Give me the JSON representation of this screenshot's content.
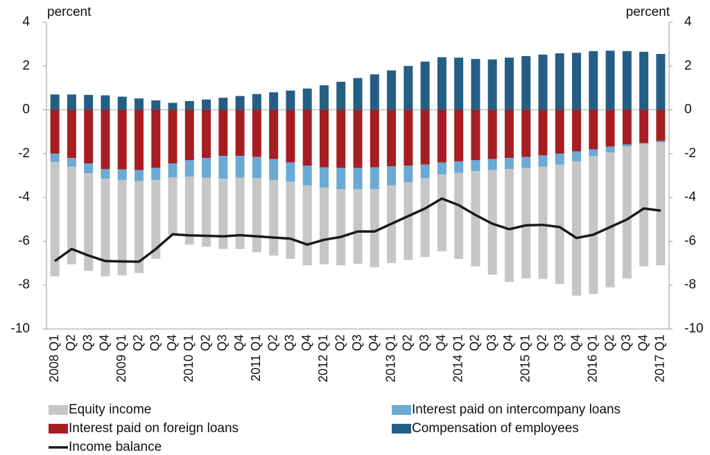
{
  "chart_data": {
    "type": "bar",
    "stacked": true,
    "y_label": "percent",
    "y2_label": "percent",
    "categories": [
      "2008 Q1",
      "Q2",
      "Q3",
      "Q4",
      "2009 Q1",
      "Q2",
      "Q3",
      "Q4",
      "2010 Q1",
      "Q2",
      "Q3",
      "Q4",
      "2011 Q1",
      "Q2",
      "Q3",
      "Q4",
      "2012 Q1",
      "Q2",
      "Q3",
      "Q4",
      "2013 Q1",
      "Q2",
      "Q3",
      "Q4",
      "2014 Q1",
      "Q2",
      "Q3",
      "Q4",
      "2015 Q1",
      "Q2",
      "Q3",
      "Q4",
      "2016 Q1",
      "Q2",
      "Q3",
      "Q4",
      "2017 Q1"
    ],
    "series": [
      {
        "name": "Compensation of employees",
        "color": "#255e85",
        "type": "bar",
        "values": [
          0.7,
          0.7,
          0.68,
          0.66,
          0.6,
          0.52,
          0.43,
          0.32,
          0.4,
          0.47,
          0.55,
          0.63,
          0.72,
          0.8,
          0.88,
          0.97,
          1.12,
          1.28,
          1.45,
          1.62,
          1.8,
          2.0,
          2.2,
          2.4,
          2.38,
          2.32,
          2.3,
          2.38,
          2.45,
          2.52,
          2.58,
          2.6,
          2.68,
          2.7,
          2.68,
          2.65,
          2.55
        ]
      },
      {
        "name": "Interest paid on foreign loans",
        "color": "#a71e22",
        "type": "bar",
        "values": [
          -2.0,
          -2.2,
          -2.45,
          -2.7,
          -2.72,
          -2.75,
          -2.65,
          -2.45,
          -2.3,
          -2.2,
          -2.1,
          -2.1,
          -2.15,
          -2.25,
          -2.4,
          -2.55,
          -2.62,
          -2.65,
          -2.65,
          -2.62,
          -2.58,
          -2.55,
          -2.5,
          -2.4,
          -2.35,
          -2.3,
          -2.25,
          -2.2,
          -2.15,
          -2.08,
          -2.0,
          -1.9,
          -1.8,
          -1.68,
          -1.58,
          -1.52,
          -1.42
        ]
      },
      {
        "name": "Interest paid on intercompany loans",
        "color": "#6aaad5",
        "type": "bar",
        "values": [
          -0.38,
          -0.4,
          -0.45,
          -0.45,
          -0.48,
          -0.5,
          -0.55,
          -0.63,
          -0.75,
          -0.9,
          -1.05,
          -1.0,
          -0.97,
          -0.95,
          -0.88,
          -0.9,
          -0.93,
          -0.97,
          -0.97,
          -1.0,
          -0.87,
          -0.75,
          -0.62,
          -0.55,
          -0.53,
          -0.5,
          -0.5,
          -0.5,
          -0.5,
          -0.52,
          -0.5,
          -0.45,
          -0.32,
          -0.27,
          -0.1,
          -0.03,
          -0.06
        ]
      },
      {
        "name": "Equity income",
        "color": "#c6c6c6",
        "type": "bar",
        "values": [
          -5.22,
          -4.45,
          -4.45,
          -4.45,
          -4.35,
          -4.2,
          -3.6,
          -2.62,
          -3.1,
          -3.15,
          -3.2,
          -3.25,
          -3.38,
          -3.45,
          -3.52,
          -3.65,
          -3.5,
          -3.48,
          -3.4,
          -3.56,
          -3.55,
          -3.55,
          -3.6,
          -3.5,
          -3.92,
          -4.35,
          -4.77,
          -5.15,
          -5.05,
          -5.12,
          -5.45,
          -6.13,
          -6.28,
          -6.15,
          -6.02,
          -5.6,
          -5.62
        ]
      },
      {
        "name": "Income balance",
        "color": "#1a1a1a",
        "type": "line",
        "values": [
          -6.9,
          -6.35,
          -6.65,
          -6.9,
          -6.92,
          -6.93,
          -6.35,
          -5.68,
          -5.73,
          -5.75,
          -5.77,
          -5.72,
          -5.77,
          -5.83,
          -5.88,
          -6.15,
          -5.93,
          -5.8,
          -5.55,
          -5.55,
          -5.2,
          -4.85,
          -4.5,
          -4.05,
          -4.35,
          -4.8,
          -5.2,
          -5.45,
          -5.27,
          -5.25,
          -5.35,
          -5.85,
          -5.7,
          -5.35,
          -5.0,
          -4.5,
          -4.6
        ]
      }
    ],
    "legend_order": [
      3,
      2,
      1,
      0,
      4
    ],
    "ylim": [
      -10,
      4
    ],
    "yticks": [
      -10,
      -8,
      -6,
      -4,
      -2,
      0,
      2,
      4
    ],
    "y2lim": [
      -10,
      4
    ],
    "y2ticks": [
      -10,
      -8,
      -6,
      -4,
      -2,
      0,
      2,
      4
    ],
    "grid": false
  }
}
